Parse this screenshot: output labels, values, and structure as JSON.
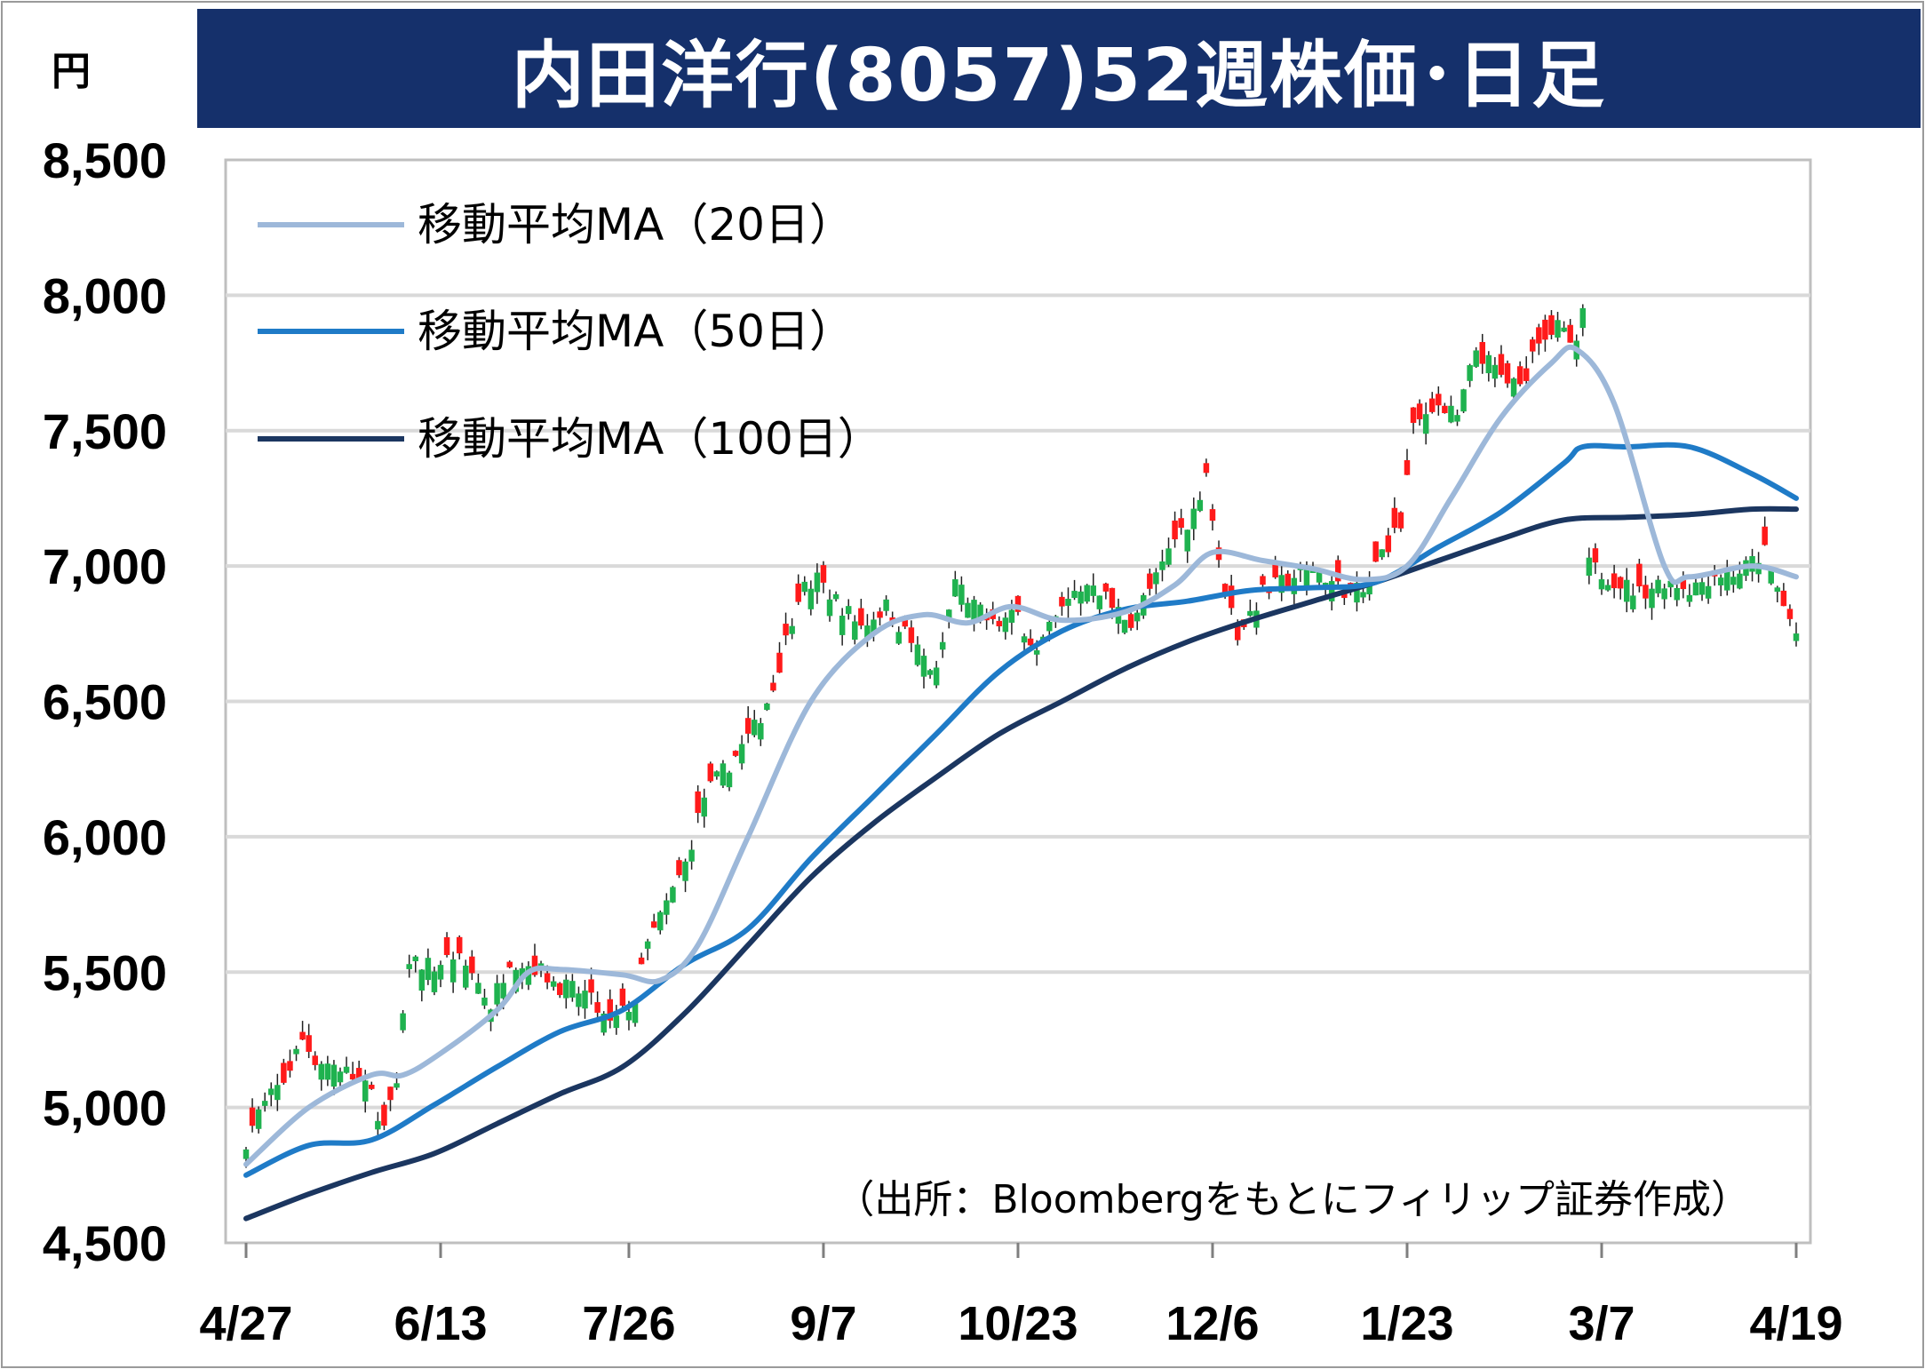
{
  "chart_data": {
    "type": "candlestick",
    "title": "内田洋行(8057)52週株価･日足",
    "unit_label": "円",
    "source": "（出所：Bloombergをもとにフィリップ証券作成）",
    "ylim": [
      4500,
      8500
    ],
    "y_ticks": [
      4500,
      5000,
      5500,
      6000,
      6500,
      7000,
      7500,
      8000,
      8500
    ],
    "y_tick_labels": [
      "4,500",
      "5,000",
      "5,500",
      "6,000",
      "6,500",
      "7,000",
      "7,500",
      "8,000",
      "8,500"
    ],
    "x_tick_labels": [
      "4/27",
      "6/13",
      "7/26",
      "9/7",
      "10/23",
      "12/6",
      "1/23",
      "3/7",
      "4/19"
    ],
    "x_tick_index": [
      0,
      31,
      61,
      92,
      123,
      154,
      185,
      216,
      247
    ],
    "grid": true,
    "colors": {
      "up": "#1fb24f",
      "down": "#ff1a1a",
      "ma20": "#9db8d9",
      "ma50": "#1f7bc7",
      "ma100": "#1b3660",
      "title_bg": "#15306b",
      "grid": "#d9d9d9"
    },
    "legend": [
      {
        "name": "移動平均MA（20日）",
        "key": "ma20"
      },
      {
        "name": "移動平均MA（50日）",
        "key": "ma50"
      },
      {
        "name": "移動平均MA（100日）",
        "key": "ma100"
      }
    ],
    "close_anchors": [
      [
        0,
        4880
      ],
      [
        2,
        4980
      ],
      [
        6,
        5100
      ],
      [
        9,
        5250
      ],
      [
        11,
        5180
      ],
      [
        15,
        5150
      ],
      [
        20,
        5050
      ],
      [
        22,
        4920
      ],
      [
        24,
        5080
      ],
      [
        26,
        5550
      ],
      [
        30,
        5520
      ],
      [
        33,
        5560
      ],
      [
        36,
        5500
      ],
      [
        39,
        5380
      ],
      [
        42,
        5550
      ],
      [
        46,
        5520
      ],
      [
        50,
        5450
      ],
      [
        54,
        5420
      ],
      [
        58,
        5300
      ],
      [
        62,
        5400
      ],
      [
        64,
        5600
      ],
      [
        67,
        5750
      ],
      [
        70,
        5900
      ],
      [
        73,
        6150
      ],
      [
        78,
        6300
      ],
      [
        81,
        6400
      ],
      [
        84,
        6550
      ],
      [
        88,
        6900
      ],
      [
        91,
        6950
      ],
      [
        95,
        6850
      ],
      [
        98,
        6780
      ],
      [
        102,
        6850
      ],
      [
        106,
        6720
      ],
      [
        110,
        6600
      ],
      [
        113,
        6950
      ],
      [
        116,
        6850
      ],
      [
        119,
        6780
      ],
      [
        123,
        6820
      ],
      [
        126,
        6680
      ],
      [
        129,
        6800
      ],
      [
        132,
        6900
      ],
      [
        135,
        6950
      ],
      [
        138,
        6850
      ],
      [
        141,
        6800
      ],
      [
        145,
        6950
      ],
      [
        148,
        7100
      ],
      [
        151,
        7200
      ],
      [
        153,
        7350
      ],
      [
        155,
        7000
      ],
      [
        158,
        6750
      ],
      [
        162,
        6900
      ],
      [
        166,
        6950
      ],
      [
        170,
        7000
      ],
      [
        174,
        6920
      ],
      [
        178,
        6900
      ],
      [
        181,
        7050
      ],
      [
        184,
        7150
      ],
      [
        186,
        7500
      ],
      [
        189,
        7600
      ],
      [
        193,
        7550
      ],
      [
        196,
        7800
      ],
      [
        200,
        7700
      ],
      [
        203,
        7650
      ],
      [
        206,
        7850
      ],
      [
        209,
        7880
      ],
      [
        212,
        7800
      ],
      [
        213,
        7950
      ],
      [
        214,
        7000
      ],
      [
        218,
        6950
      ],
      [
        222,
        6900
      ],
      [
        226,
        6950
      ],
      [
        230,
        6920
      ],
      [
        234,
        6970
      ],
      [
        238,
        6980
      ],
      [
        242,
        7050
      ],
      [
        245,
        6850
      ],
      [
        247,
        6750
      ]
    ],
    "ma20": [
      [
        0,
        4790
      ],
      [
        10,
        5000
      ],
      [
        20,
        5120
      ],
      [
        25,
        5120
      ],
      [
        31,
        5200
      ],
      [
        40,
        5360
      ],
      [
        45,
        5500
      ],
      [
        50,
        5510
      ],
      [
        60,
        5490
      ],
      [
        66,
        5470
      ],
      [
        72,
        5600
      ],
      [
        80,
        6000
      ],
      [
        90,
        6500
      ],
      [
        100,
        6750
      ],
      [
        108,
        6820
      ],
      [
        115,
        6790
      ],
      [
        122,
        6850
      ],
      [
        130,
        6800
      ],
      [
        140,
        6830
      ],
      [
        148,
        6930
      ],
      [
        154,
        7050
      ],
      [
        162,
        7020
      ],
      [
        170,
        6990
      ],
      [
        178,
        6950
      ],
      [
        185,
        7000
      ],
      [
        192,
        7250
      ],
      [
        200,
        7550
      ],
      [
        208,
        7750
      ],
      [
        212,
        7800
      ],
      [
        218,
        7600
      ],
      [
        226,
        7000
      ],
      [
        230,
        6960
      ],
      [
        240,
        7000
      ],
      [
        247,
        6960
      ]
    ],
    "ma50": [
      [
        0,
        4750
      ],
      [
        10,
        4860
      ],
      [
        20,
        4880
      ],
      [
        30,
        5010
      ],
      [
        40,
        5150
      ],
      [
        50,
        5280
      ],
      [
        60,
        5360
      ],
      [
        70,
        5530
      ],
      [
        80,
        5660
      ],
      [
        90,
        5920
      ],
      [
        100,
        6150
      ],
      [
        110,
        6380
      ],
      [
        120,
        6610
      ],
      [
        130,
        6760
      ],
      [
        140,
        6840
      ],
      [
        150,
        6870
      ],
      [
        160,
        6910
      ],
      [
        170,
        6920
      ],
      [
        180,
        6940
      ],
      [
        190,
        7070
      ],
      [
        200,
        7200
      ],
      [
        210,
        7380
      ],
      [
        213,
        7440
      ],
      [
        220,
        7440
      ],
      [
        230,
        7440
      ],
      [
        240,
        7340
      ],
      [
        247,
        7250
      ]
    ],
    "ma100": [
      [
        0,
        4590
      ],
      [
        10,
        4680
      ],
      [
        20,
        4760
      ],
      [
        30,
        4830
      ],
      [
        40,
        4940
      ],
      [
        50,
        5050
      ],
      [
        60,
        5150
      ],
      [
        70,
        5350
      ],
      [
        80,
        5600
      ],
      [
        90,
        5850
      ],
      [
        100,
        6050
      ],
      [
        110,
        6220
      ],
      [
        120,
        6380
      ],
      [
        130,
        6500
      ],
      [
        140,
        6620
      ],
      [
        150,
        6720
      ],
      [
        160,
        6800
      ],
      [
        170,
        6870
      ],
      [
        180,
        6940
      ],
      [
        190,
        7020
      ],
      [
        200,
        7100
      ],
      [
        210,
        7170
      ],
      [
        220,
        7180
      ],
      [
        230,
        7190
      ],
      [
        240,
        7210
      ],
      [
        247,
        7210
      ]
    ]
  }
}
